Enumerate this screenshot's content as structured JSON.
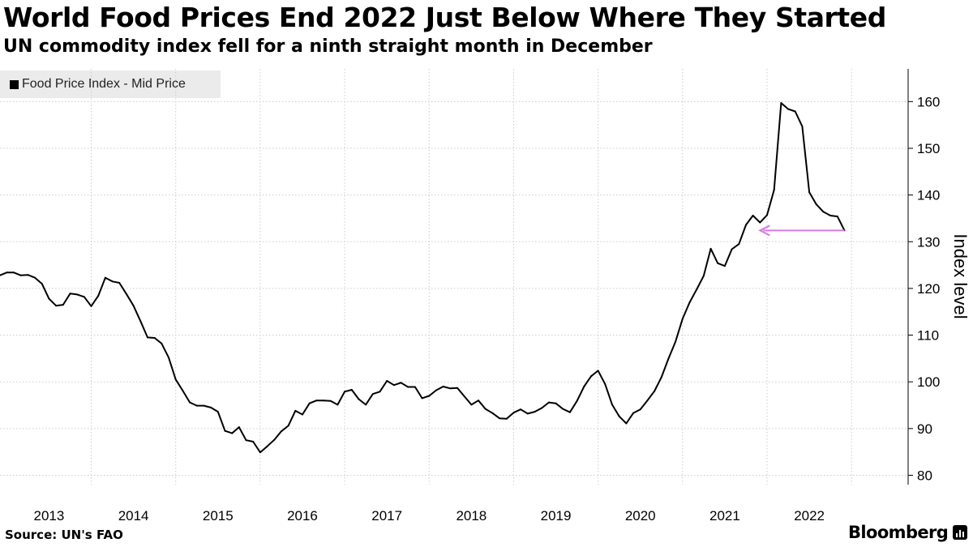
{
  "header": {
    "title": "World Food Prices End 2022 Just Below Where They Started",
    "subtitle": "UN commodity index fell for a ninth straight month in December"
  },
  "footer": {
    "source": "Source: UN's FAO",
    "brand": "Bloomberg"
  },
  "colors": {
    "series": "#000000",
    "annotation_arrow": "#d67be6",
    "grid": "#cccccc",
    "legend_bg": "#ebebeb"
  },
  "chart_data": {
    "type": "line",
    "title": "World Food Prices End 2022 Just Below Where They Started",
    "subtitle": "UN commodity index fell for a ninth straight month in December",
    "ylabel": "Index level",
    "xlabel": "",
    "ylim": [
      78,
      167
    ],
    "xlim": [
      2012.92,
      2023.67
    ],
    "yticks": [
      80,
      90,
      100,
      110,
      120,
      130,
      140,
      150,
      160
    ],
    "xtick_labels": [
      "2013",
      "2014",
      "2015",
      "2016",
      "2017",
      "2018",
      "2019",
      "2020",
      "2021",
      "2022"
    ],
    "grid": true,
    "axis_side": "right",
    "legend": [
      "Food Price Index - Mid Price"
    ],
    "legend_position": "top-left",
    "series": [
      {
        "name": "Food Price Index - Mid Price",
        "start": "2012-12",
        "frequency": "monthly",
        "values": [
          122.8,
          123.4,
          123.4,
          122.8,
          122.9,
          122.3,
          121.0,
          117.8,
          116.3,
          116.5,
          118.9,
          118.7,
          118.2,
          116.2,
          118.4,
          122.3,
          121.5,
          121.2,
          118.8,
          116.3,
          113.0,
          109.5,
          109.4,
          108.2,
          105.2,
          100.5,
          98.1,
          95.6,
          94.9,
          94.9,
          94.5,
          93.6,
          89.5,
          89.0,
          90.3,
          87.5,
          87.2,
          84.9,
          86.2,
          87.6,
          89.4,
          90.6,
          93.8,
          93.0,
          95.4,
          96.0,
          96.0,
          95.9,
          95.1,
          97.9,
          98.3,
          96.3,
          95.1,
          97.4,
          97.9,
          100.2,
          99.3,
          99.8,
          98.9,
          98.9,
          96.5,
          97.0,
          98.2,
          99.0,
          98.6,
          98.7,
          96.9,
          95.1,
          96.0,
          94.2,
          93.3,
          92.2,
          92.1,
          93.4,
          94.1,
          93.2,
          93.6,
          94.4,
          95.6,
          95.4,
          94.2,
          93.5,
          95.9,
          99.0,
          101.2,
          102.4,
          99.5,
          95.1,
          92.6,
          91.1,
          93.3,
          94.1,
          96.0,
          98.0,
          101.0,
          105.0,
          108.6,
          113.5,
          117.0,
          119.8,
          122.7,
          128.5,
          125.4,
          124.8,
          128.4,
          129.5,
          133.6,
          135.6,
          134.1,
          135.7,
          141.1,
          159.7,
          158.4,
          157.9,
          154.7,
          140.6,
          138.0,
          136.4,
          135.6,
          135.4,
          132.4
        ]
      }
    ],
    "annotation": {
      "type": "arrow",
      "from_date": "2022-12",
      "to_date": "2021-12",
      "value": 132.4,
      "meaning": "December 2022 level vs start of 2022"
    }
  }
}
